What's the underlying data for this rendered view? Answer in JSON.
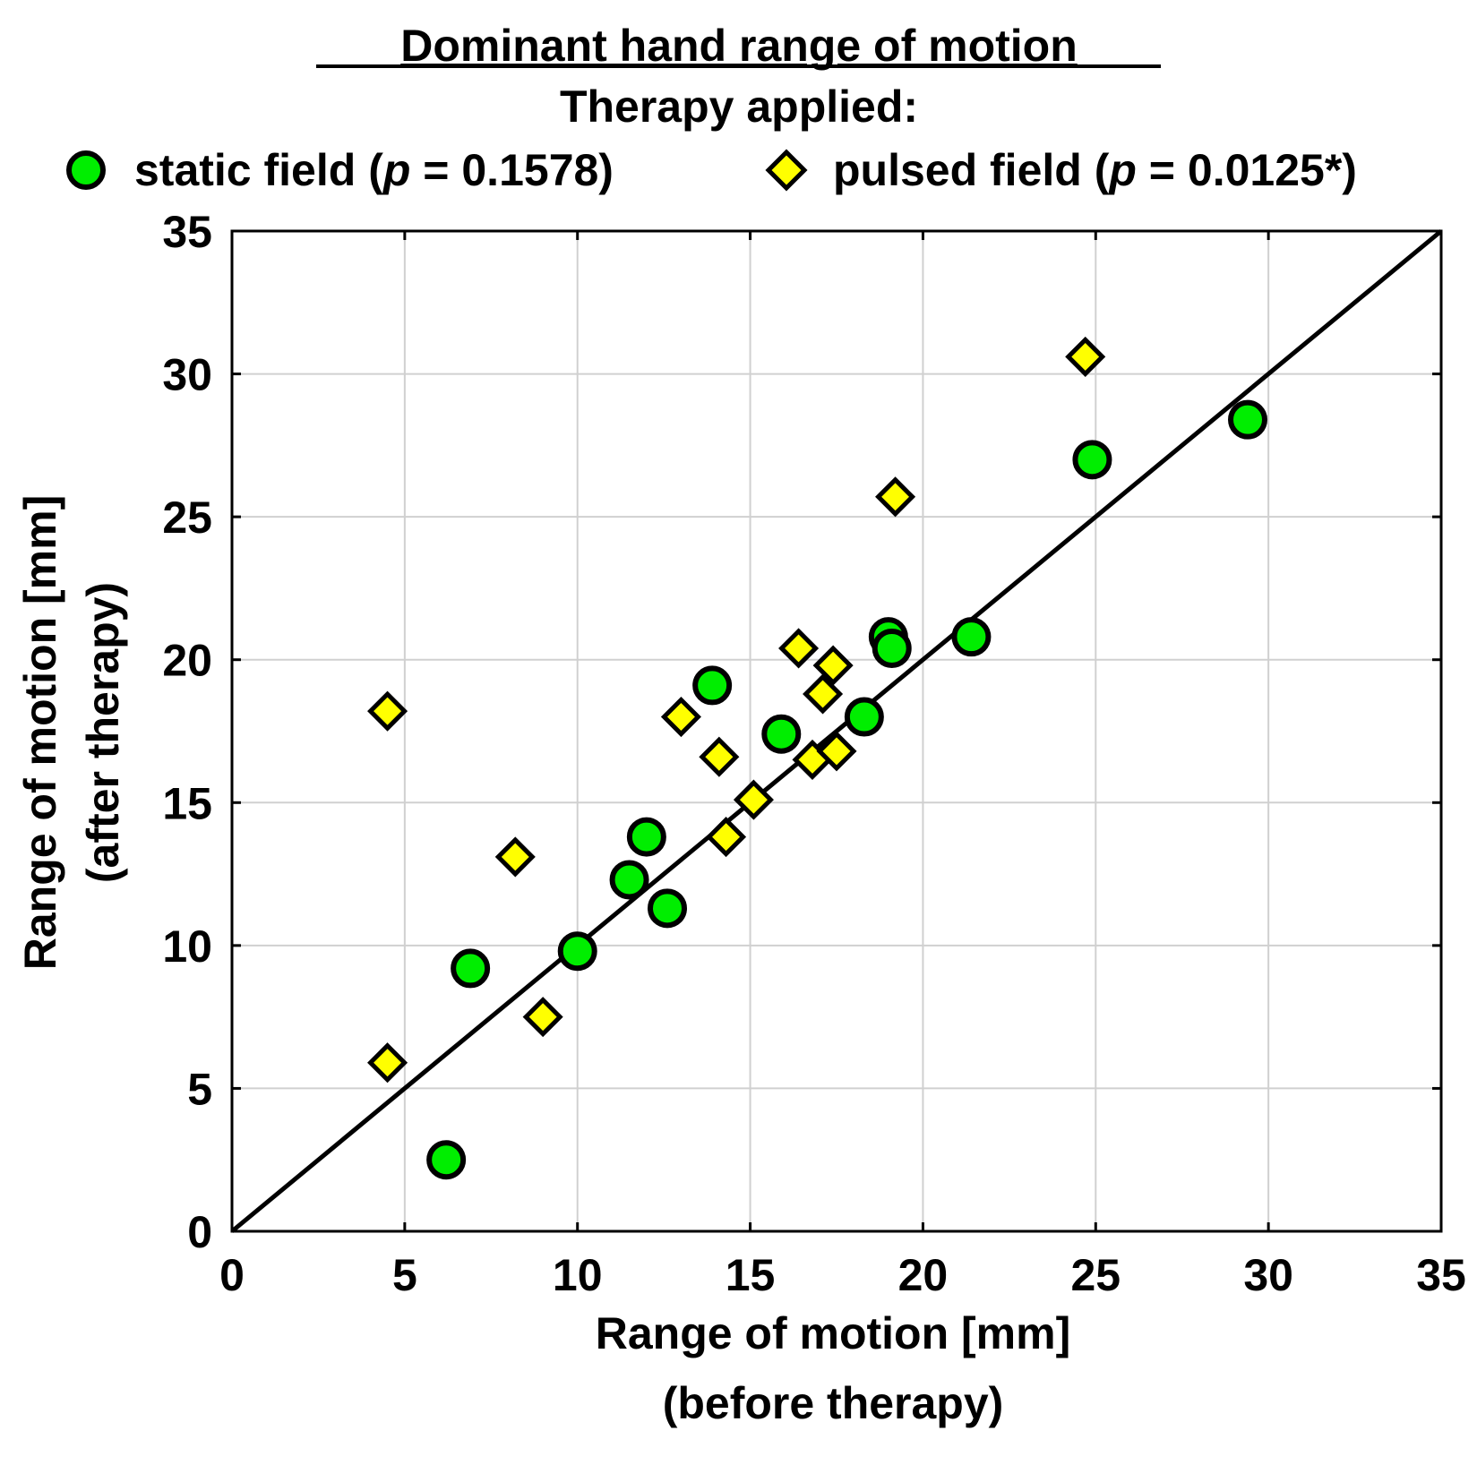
{
  "chart_data": {
    "type": "scatter",
    "title": "Dominant hand range of motion",
    "subtitle": "Therapy applied:",
    "legend_position": "top",
    "xlabel_line1": "Range of motion [mm]",
    "xlabel_line2": "(before therapy)",
    "ylabel_line1": "Range of motion [mm]",
    "ylabel_line2": "(after therapy)",
    "xlim": [
      0,
      35
    ],
    "ylim": [
      0,
      35
    ],
    "xticks": [
      "0",
      "5",
      "10",
      "15",
      "20",
      "25",
      "30",
      "35"
    ],
    "yticks": [
      "0",
      "5",
      "10",
      "15",
      "20",
      "25",
      "30",
      "35"
    ],
    "grid": true,
    "reference_line": {
      "from": [
        0,
        0
      ],
      "to": [
        35,
        35
      ]
    },
    "series": [
      {
        "name": "static field",
        "p_label": "p",
        "p_value": " = 0.1578)",
        "marker": "circle",
        "color": "#00ee00",
        "points": [
          [
            6.2,
            2.5
          ],
          [
            6.9,
            9.2
          ],
          [
            10.0,
            9.8
          ],
          [
            11.5,
            12.3
          ],
          [
            12.0,
            13.8
          ],
          [
            12.6,
            11.3
          ],
          [
            13.9,
            19.1
          ],
          [
            15.9,
            17.4
          ],
          [
            18.3,
            18.0
          ],
          [
            19.0,
            20.8
          ],
          [
            19.1,
            20.4
          ],
          [
            21.4,
            20.8
          ],
          [
            24.9,
            27.0
          ],
          [
            29.4,
            28.4
          ]
        ]
      },
      {
        "name": "pulsed field",
        "p_label": "p",
        "p_value": " = 0.0125*)",
        "marker": "diamond",
        "color": "#ffff00",
        "points": [
          [
            4.5,
            18.2
          ],
          [
            4.5,
            5.9
          ],
          [
            8.2,
            13.1
          ],
          [
            9.0,
            7.5
          ],
          [
            13.0,
            18.0
          ],
          [
            14.1,
            16.6
          ],
          [
            14.3,
            13.8
          ],
          [
            15.1,
            15.1
          ],
          [
            16.4,
            20.4
          ],
          [
            16.8,
            16.5
          ],
          [
            17.1,
            18.8
          ],
          [
            17.4,
            19.8
          ],
          [
            17.5,
            16.8
          ],
          [
            19.2,
            25.7
          ],
          [
            24.7,
            30.6
          ]
        ]
      }
    ]
  }
}
